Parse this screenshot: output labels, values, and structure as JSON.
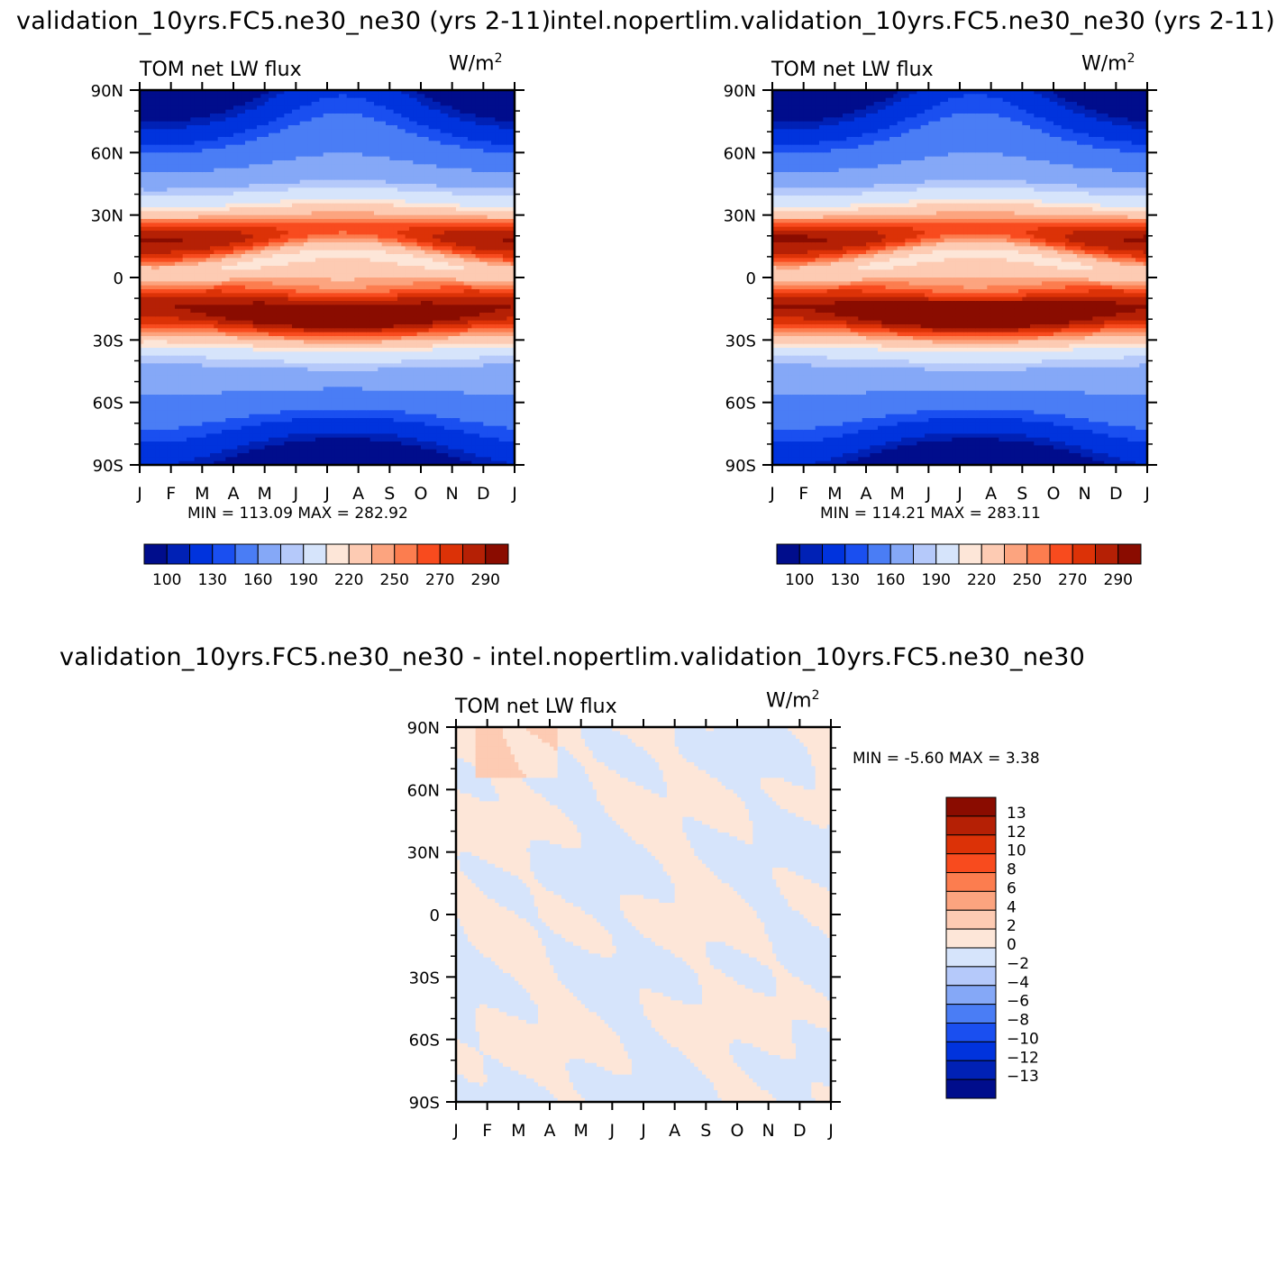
{
  "titles": {
    "left": "validation_10yrs.FC5.ne30_ne30 (yrs 2-11)",
    "right": "intel.nopertlim.validation_10yrs.FC5.ne30_ne30 (yrs 2-11)",
    "diff": "validation_10yrs.FC5.ne30_ne30 - intel.nopertlim.validation_10yrs.FC5.ne30_ne30"
  },
  "colors": {
    "main_scale": [
      "#000d8c",
      "#0021b5",
      "#0033dd",
      "#1a4ff0",
      "#4a7df5",
      "#85a8f7",
      "#b5c9fa",
      "#d6e4fb",
      "#fde6d8",
      "#fdcbb3",
      "#fca47f",
      "#fc7d4f",
      "#f84b1e",
      "#dc3207",
      "#b52005",
      "#8a0c00"
    ],
    "diff_scale": [
      "#8a0c00",
      "#b52005",
      "#dc3207",
      "#f84b1e",
      "#fc7d4f",
      "#fca47f",
      "#fdcbb3",
      "#fde6d8",
      "#d6e4fb",
      "#b5c9fa",
      "#85a8f7",
      "#4a7df5",
      "#1a4ff0",
      "#0033dd",
      "#0021b5",
      "#000d8c"
    ]
  },
  "chart_data": [
    {
      "type": "heatmap",
      "id": "left",
      "subtitle": "TOM net LW flux",
      "units_base": "W/m",
      "units_exp": "2",
      "x_ticks": [
        "J",
        "F",
        "M",
        "A",
        "M",
        "J",
        "J",
        "A",
        "S",
        "O",
        "N",
        "D",
        "J"
      ],
      "y_ticks": [
        "90N",
        "60N",
        "30N",
        "0",
        "30S",
        "60S",
        "90S"
      ],
      "min_max": "MIN = 113.09 MAX = 282.92",
      "colorbar_labels": [
        "100",
        "130",
        "160",
        "190",
        "220",
        "250",
        "270",
        "290"
      ],
      "colorbar_levels": [
        100,
        110,
        130,
        140,
        160,
        180,
        190,
        210,
        220,
        240,
        250,
        260,
        270,
        280,
        290
      ]
    },
    {
      "type": "heatmap",
      "id": "right",
      "subtitle": "TOM net LW flux",
      "units_base": "W/m",
      "units_exp": "2",
      "x_ticks": [
        "J",
        "F",
        "M",
        "A",
        "M",
        "J",
        "J",
        "A",
        "S",
        "O",
        "N",
        "D",
        "J"
      ],
      "y_ticks": [
        "90N",
        "60N",
        "30N",
        "0",
        "30S",
        "60S",
        "90S"
      ],
      "min_max": "MIN = 114.21 MAX = 283.11",
      "colorbar_labels": [
        "100",
        "130",
        "160",
        "190",
        "220",
        "250",
        "270",
        "290"
      ],
      "colorbar_levels": [
        100,
        110,
        130,
        140,
        160,
        180,
        190,
        210,
        220,
        240,
        250,
        260,
        270,
        280,
        290
      ]
    },
    {
      "type": "heatmap",
      "id": "diff",
      "subtitle": "TOM net LW flux",
      "units_base": "W/m",
      "units_exp": "2",
      "x_ticks": [
        "J",
        "F",
        "M",
        "A",
        "M",
        "J",
        "J",
        "A",
        "S",
        "O",
        "N",
        "D",
        "J"
      ],
      "y_ticks": [
        "90N",
        "60N",
        "30N",
        "0",
        "30S",
        "60S",
        "90S"
      ],
      "min_max": "MIN = -5.60 MAX = 3.38",
      "colorbar_labels": [
        "13",
        "12",
        "10",
        "8",
        "6",
        "4",
        "2",
        "0",
        "-2",
        "-4",
        "-6",
        "-8",
        "-10",
        "-12",
        "-13"
      ]
    }
  ]
}
